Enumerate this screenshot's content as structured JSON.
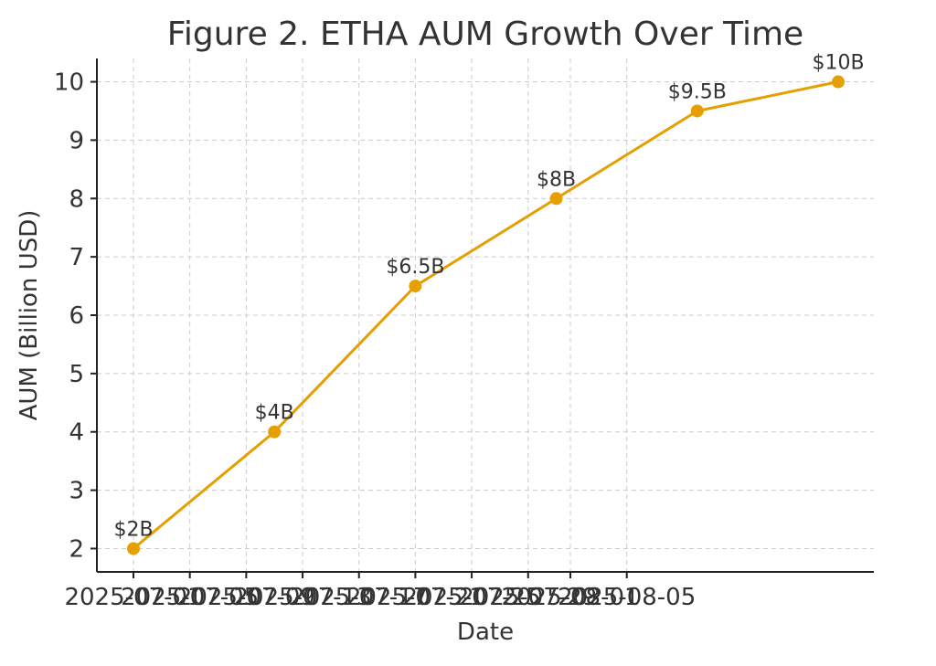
{
  "chart_data": {
    "type": "line",
    "title": "Figure 2. ETHA AUM Growth Over Time",
    "xlabel": "Date",
    "ylabel": "AUM (Billion USD)",
    "x": [
      "2025-07-01",
      "2025-07-11",
      "2025-07-21",
      "2025-07-31",
      "2025-08-10",
      "2025-08-20"
    ],
    "values": [
      2,
      4,
      6.5,
      8,
      9.5,
      10
    ],
    "data_labels": [
      "$2B",
      "$4B",
      "$6.5B",
      "$8B",
      "$9.5B",
      "$10B"
    ],
    "x_ticks": [
      "2025-07-01",
      "2025-07-05",
      "2025-07-09",
      "2025-07-13",
      "2025-07-17",
      "2025-07-21",
      "2025-07-25",
      "2025-07-29",
      "2025-08-01",
      "2025-08-05"
    ],
    "y_ticks": [
      2,
      3,
      4,
      5,
      6,
      7,
      8,
      9,
      10
    ],
    "ylim": [
      1.6,
      10.4
    ],
    "grid": true,
    "line_color": "#E69F00",
    "marker": "circle"
  }
}
